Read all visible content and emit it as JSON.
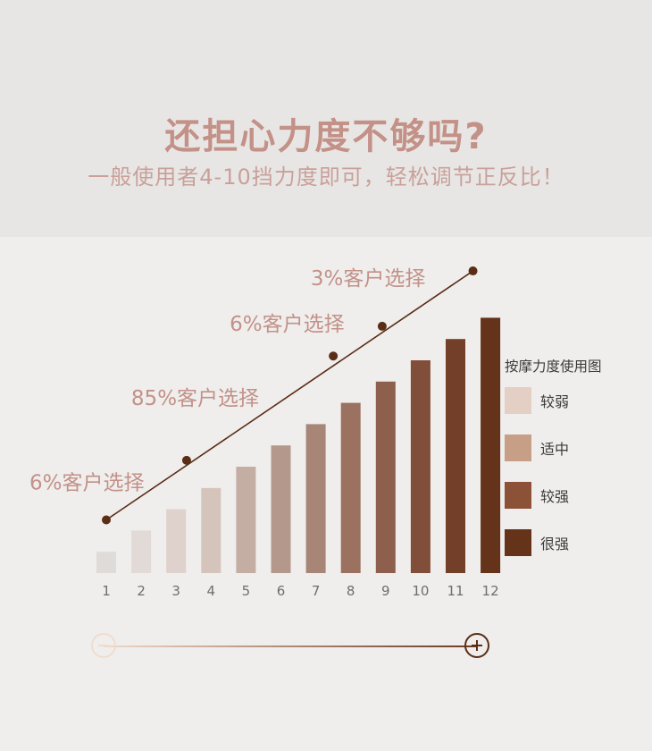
{
  "header": {
    "title": "还担心力度不够吗?",
    "subtitle": "一般使用者4-10挡力度即可，轻松调节正反比！"
  },
  "legend": {
    "title": "按摩力度使用图",
    "items": [
      {
        "label": "较弱",
        "color": "#e3cfc4"
      },
      {
        "label": "适中",
        "color": "#c79e86"
      },
      {
        "label": "较强",
        "color": "#8b5238"
      },
      {
        "label": "很强",
        "color": "#65321a"
      }
    ]
  },
  "chart_data": {
    "type": "bar",
    "categories": [
      "1",
      "2",
      "3",
      "4",
      "5",
      "6",
      "7",
      "8",
      "9",
      "10",
      "11",
      "12"
    ],
    "values": [
      1,
      2,
      3,
      4,
      5,
      6,
      7,
      8,
      9,
      10,
      11,
      12
    ],
    "ylim": [
      0,
      13
    ],
    "bar_colors": [
      "#dedbd9",
      "#e2dad6",
      "#dfd1cc",
      "#d5c4bc",
      "#c4aea4",
      "#b5988c",
      "#a78577",
      "#9b7260",
      "#8d5f4c",
      "#814e39",
      "#733f28",
      "#65321a"
    ],
    "trend_line": {
      "color": "#5a2d17",
      "points": [
        {
          "x": 1,
          "y": 2.5
        },
        {
          "x": 3.3,
          "y": 5.3
        },
        {
          "x": 7.5,
          "y": 10.2
        },
        {
          "x": 8.9,
          "y": 11.6
        },
        {
          "x": 11.5,
          "y": 14.2
        }
      ]
    },
    "annotations": [
      {
        "text": "6%客户选择",
        "x": 1
      },
      {
        "text": "85%客户选择",
        "x": 3.3
      },
      {
        "text": "6%客户选择",
        "x": 7.5
      },
      {
        "text": "3%客户选择",
        "x": 8.9
      }
    ],
    "annotation_color": "#c39187"
  },
  "slider": {
    "minus_icon": "minus-circle-icon",
    "plus_icon": "plus-circle-icon"
  }
}
